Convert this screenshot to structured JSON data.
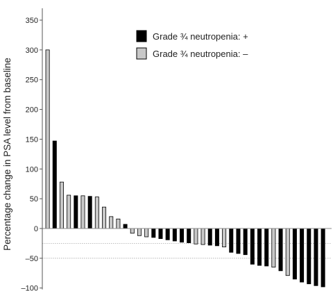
{
  "chart_data": {
    "type": "bar",
    "ylabel": "Percentage change in PSA level from baseline",
    "ylim": [
      -100,
      370
    ],
    "yticks": [
      350,
      300,
      250,
      200,
      150,
      100,
      50,
      0,
      -50,
      -100
    ],
    "reference_lines": [
      -25,
      -50
    ],
    "legend": {
      "position": "top-right",
      "entries": [
        {
          "label": "Grade ¾ neutropenia: +",
          "color": "#000000"
        },
        {
          "label": "Grade ¾ neutropenia: –",
          "color": "#c8c8c8"
        }
      ]
    },
    "series": [
      {
        "name": "Grade ¾ neutropenia: +",
        "color": "#000000"
      },
      {
        "name": "Grade ¾ neutropenia: –",
        "color": "#c8c8c8"
      }
    ],
    "bars": [
      {
        "value": 300,
        "group": 1
      },
      {
        "value": 147,
        "group": 0
      },
      {
        "value": 78,
        "group": 1
      },
      {
        "value": 56,
        "group": 1
      },
      {
        "value": 55,
        "group": 0
      },
      {
        "value": 55,
        "group": 1
      },
      {
        "value": 54,
        "group": 0
      },
      {
        "value": 53,
        "group": 1
      },
      {
        "value": 36,
        "group": 1
      },
      {
        "value": 20,
        "group": 1
      },
      {
        "value": 16,
        "group": 1
      },
      {
        "value": 7,
        "group": 0
      },
      {
        "value": -8,
        "group": 1
      },
      {
        "value": -12,
        "group": 1
      },
      {
        "value": -14,
        "group": 1
      },
      {
        "value": -15,
        "group": 0
      },
      {
        "value": -17,
        "group": 0
      },
      {
        "value": -19,
        "group": 0
      },
      {
        "value": -21,
        "group": 0
      },
      {
        "value": -23,
        "group": 0
      },
      {
        "value": -24,
        "group": 0
      },
      {
        "value": -26,
        "group": 1
      },
      {
        "value": -27,
        "group": 1
      },
      {
        "value": -28,
        "group": 0
      },
      {
        "value": -29,
        "group": 0
      },
      {
        "value": -31,
        "group": 1
      },
      {
        "value": -40,
        "group": 0
      },
      {
        "value": -42,
        "group": 0
      },
      {
        "value": -44,
        "group": 0
      },
      {
        "value": -60,
        "group": 0
      },
      {
        "value": -62,
        "group": 0
      },
      {
        "value": -63,
        "group": 0
      },
      {
        "value": -65,
        "group": 1
      },
      {
        "value": -71,
        "group": 0
      },
      {
        "value": -79,
        "group": 1
      },
      {
        "value": -85,
        "group": 0
      },
      {
        "value": -90,
        "group": 0
      },
      {
        "value": -93,
        "group": 0
      },
      {
        "value": -96,
        "group": 0
      },
      {
        "value": -98,
        "group": 0
      }
    ]
  }
}
